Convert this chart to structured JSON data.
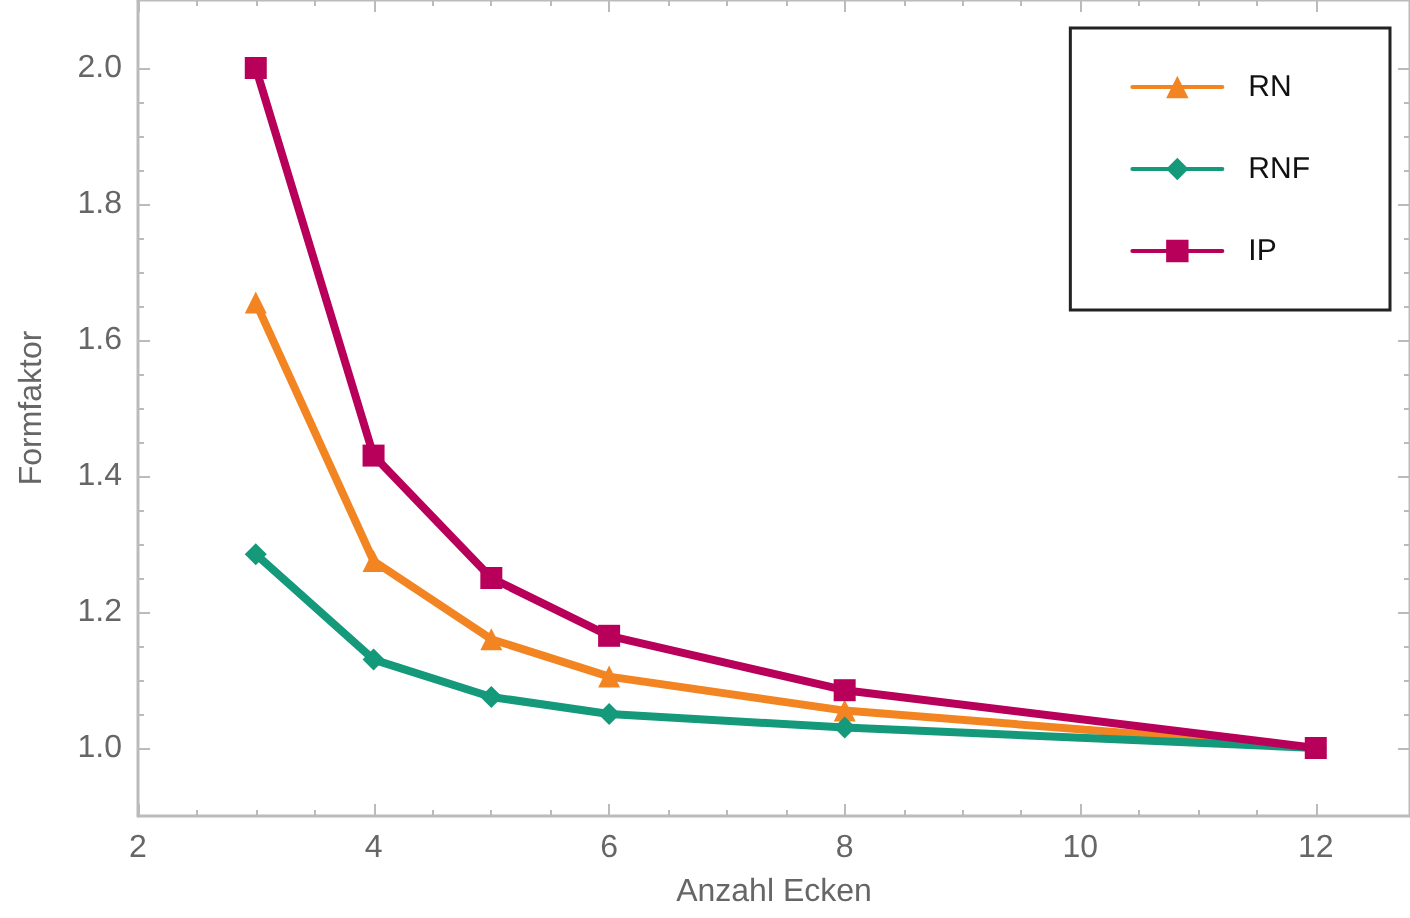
{
  "chart_data": {
    "type": "line",
    "xlabel": "Anzahl Ecken",
    "ylabel": "Formfaktor",
    "x": [
      3,
      4,
      5,
      6,
      8,
      12
    ],
    "series": [
      {
        "name": "RN",
        "color": "#f28522",
        "marker": "triangle",
        "values": [
          1.655,
          1.275,
          1.16,
          1.105,
          1.055,
          1.0
        ]
      },
      {
        "name": "RNF",
        "color": "#14997b",
        "marker": "diamond",
        "values": [
          1.285,
          1.13,
          1.075,
          1.05,
          1.03,
          1.0
        ]
      },
      {
        "name": "IP",
        "color": "#b8005a",
        "marker": "square",
        "values": [
          2.0,
          1.43,
          1.25,
          1.165,
          1.085,
          1.0
        ]
      }
    ],
    "xlim": [
      2,
      12.8
    ],
    "xticks": [
      2,
      4,
      6,
      8,
      10,
      12
    ],
    "ylim": [
      0.9,
      2.1
    ],
    "yticks": [
      {
        "value": 1,
        "label": "1.0"
      },
      1.2,
      1.4,
      1.6,
      1.8,
      {
        "value": 2,
        "label": "2.0"
      }
    ],
    "grid": false,
    "legend": "top right",
    "line_style": "solid"
  }
}
